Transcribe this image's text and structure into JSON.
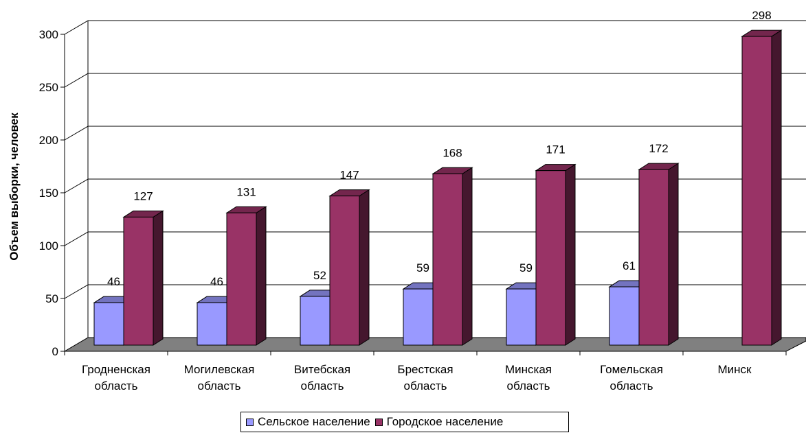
{
  "chart_data": {
    "type": "bar",
    "view": "3d-clustered-column",
    "categories": [
      "Гродненская\nобласть",
      "Могилевская\nобласть",
      "Витебская\nобласть",
      "Брестская\nобласть",
      "Минская\nобласть",
      "Гомельская\nобласть",
      "Минск"
    ],
    "series": [
      {
        "name": "Сельское население",
        "color": "#9999ff",
        "values": [
          46,
          46,
          52,
          59,
          59,
          61,
          null
        ]
      },
      {
        "name": "Городское население",
        "color": "#993366",
        "values": [
          127,
          131,
          147,
          168,
          171,
          172,
          298
        ]
      }
    ],
    "ylabel": "Объем выборки, человек",
    "xlabel": "",
    "ylim": [
      0,
      300
    ],
    "yticks": [
      0,
      50,
      100,
      150,
      200,
      250,
      300
    ],
    "grid": true,
    "legend": "bottom"
  }
}
